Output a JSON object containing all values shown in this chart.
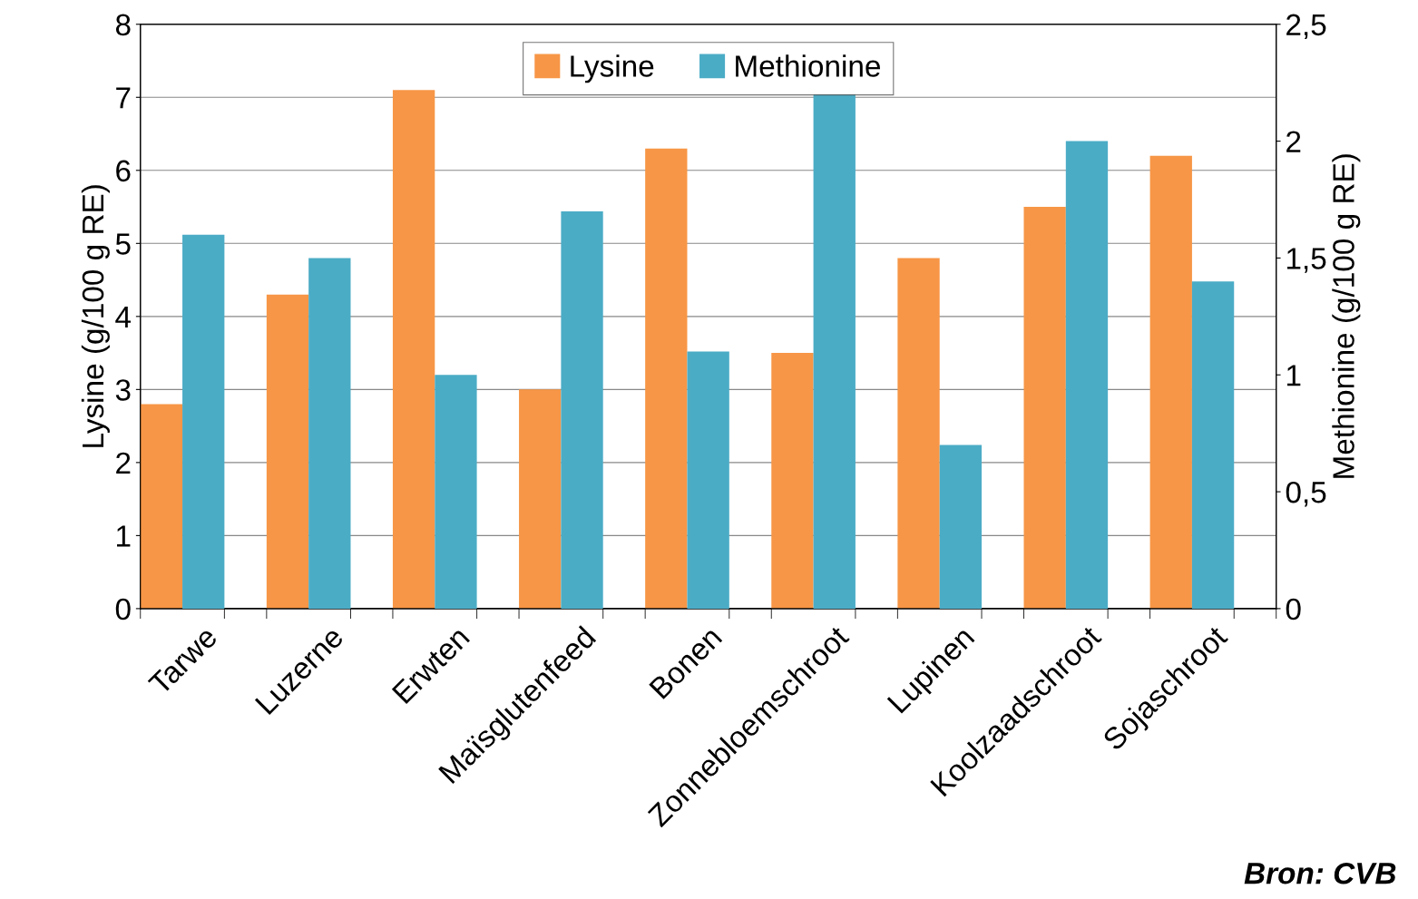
{
  "chart_data": {
    "type": "bar",
    "categories": [
      "Tarwe",
      "Luzerne",
      "Erwten",
      "Maïsglutenfeed",
      "Bonen",
      "Zonnebloemschroot",
      "Lupinen",
      "Koolzaadschroot",
      "Sojaschroot"
    ],
    "series": [
      {
        "name": "Lysine",
        "color": "#f79646",
        "values": [
          2.8,
          4.3,
          7.1,
          3.0,
          6.3,
          3.5,
          4.8,
          5.5,
          6.2
        ]
      },
      {
        "name": "Methionine",
        "color": "#4bacc6",
        "axis": "y2",
        "values": [
          1.6,
          1.5,
          1.0,
          1.7,
          1.1,
          2.2,
          0.7,
          2.0,
          1.4
        ]
      }
    ],
    "ylabel": "Lysine (g/100 g RE)",
    "y2label": "Methionine (g/100 g RE)",
    "ylim": [
      0,
      8
    ],
    "yticks": [
      0,
      1,
      2,
      3,
      4,
      5,
      6,
      7,
      8
    ],
    "y2lim": [
      0,
      2.5
    ],
    "y2ticks": [
      0,
      {
        "value": 0.5,
        "label": "0,5"
      },
      1,
      {
        "value": 1.5,
        "label": "1,5"
      },
      2,
      {
        "value": 2.5,
        "label": "2,5"
      }
    ],
    "grid": "y",
    "legend": "top",
    "annotations": [
      "Bron: CVB"
    ]
  }
}
